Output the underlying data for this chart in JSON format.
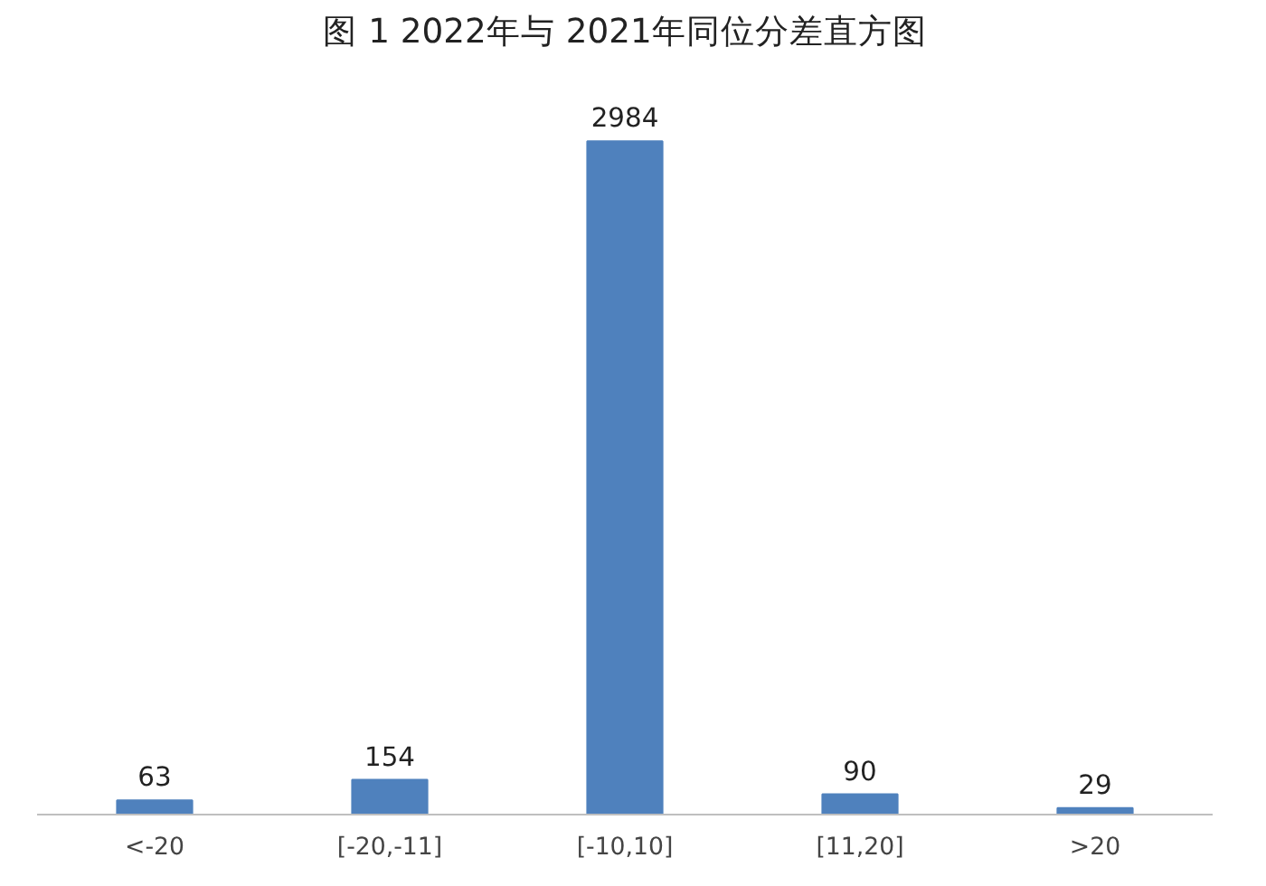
{
  "chart_data": {
    "type": "bar",
    "title": "图 1 2022年与 2021年同位分差直方图",
    "categories": [
      "<-20",
      "[-20,-11]",
      "[-10,10]",
      "[11,20]",
      ">20"
    ],
    "values": [
      63,
      154,
      2984,
      90,
      29
    ],
    "color": "#4f81bd",
    "data_labels": true
  }
}
